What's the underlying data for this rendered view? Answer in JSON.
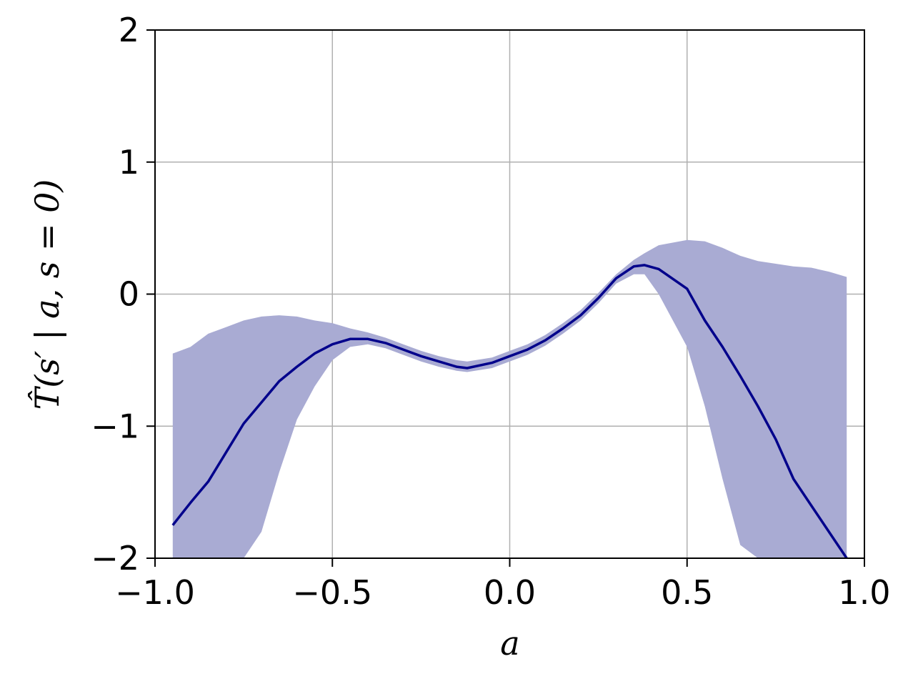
{
  "chart_data": {
    "type": "line",
    "title": "",
    "xlabel": "a",
    "ylabel": "T̂(s′ | a, s = 0)",
    "xlim": [
      -1.0,
      1.0
    ],
    "ylim": [
      -2,
      2
    ],
    "xticks": [
      -1.0,
      -0.5,
      0.0,
      0.5,
      1.0
    ],
    "xtick_labels": [
      "−1.0",
      "−0.5",
      "0.0",
      "0.5",
      "1.0"
    ],
    "yticks": [
      -2,
      -1,
      0,
      1,
      2
    ],
    "ytick_labels": [
      "−2",
      "−1",
      "0",
      "1",
      "2"
    ],
    "grid": true,
    "colors": {
      "line": "#00008b",
      "band": "#a9abd3",
      "grid": "#b0b0b0"
    },
    "series": [
      {
        "x": [
          -0.95,
          -0.9,
          -0.85,
          -0.8,
          -0.75,
          -0.7,
          -0.65,
          -0.6,
          -0.55,
          -0.5,
          -0.45,
          -0.4,
          -0.35,
          -0.3,
          -0.25,
          -0.2,
          -0.15,
          -0.12,
          -0.05,
          0.0,
          0.05,
          0.1,
          0.15,
          0.2,
          0.25,
          0.3,
          0.35,
          0.38,
          0.42,
          0.5,
          0.55,
          0.6,
          0.65,
          0.7,
          0.75,
          0.8,
          0.85,
          0.9,
          0.95
        ],
        "y": [
          -1.75,
          -1.58,
          -1.42,
          -1.2,
          -0.98,
          -0.82,
          -0.66,
          -0.55,
          -0.45,
          -0.38,
          -0.34,
          -0.34,
          -0.37,
          -0.42,
          -0.47,
          -0.51,
          -0.55,
          -0.56,
          -0.52,
          -0.47,
          -0.42,
          -0.35,
          -0.26,
          -0.16,
          -0.03,
          0.12,
          0.21,
          0.22,
          0.19,
          0.04,
          -0.2,
          -0.4,
          -0.62,
          -0.85,
          -1.1,
          -1.4,
          -1.6,
          -1.8,
          -2.0
        ]
      }
    ],
    "band": {
      "x": [
        -0.95,
        -0.9,
        -0.85,
        -0.8,
        -0.75,
        -0.7,
        -0.65,
        -0.6,
        -0.55,
        -0.5,
        -0.45,
        -0.4,
        -0.35,
        -0.3,
        -0.25,
        -0.2,
        -0.15,
        -0.12,
        -0.05,
        0.0,
        0.05,
        0.1,
        0.15,
        0.2,
        0.25,
        0.3,
        0.35,
        0.38,
        0.42,
        0.5,
        0.55,
        0.6,
        0.65,
        0.7,
        0.75,
        0.8,
        0.85,
        0.9,
        0.95
      ],
      "upper": [
        -0.45,
        -0.4,
        -0.3,
        -0.25,
        -0.2,
        -0.17,
        -0.16,
        -0.17,
        -0.2,
        -0.22,
        -0.26,
        -0.29,
        -0.33,
        -0.38,
        -0.43,
        -0.47,
        -0.5,
        -0.51,
        -0.48,
        -0.43,
        -0.38,
        -0.31,
        -0.22,
        -0.12,
        0.01,
        0.15,
        0.26,
        0.31,
        0.37,
        0.41,
        0.4,
        0.35,
        0.29,
        0.25,
        0.23,
        0.21,
        0.2,
        0.17,
        0.13
      ],
      "lower": [
        -2.0,
        -2.0,
        -2.0,
        -2.0,
        -2.0,
        -1.8,
        -1.35,
        -0.95,
        -0.7,
        -0.5,
        -0.4,
        -0.38,
        -0.41,
        -0.46,
        -0.51,
        -0.55,
        -0.58,
        -0.59,
        -0.56,
        -0.51,
        -0.46,
        -0.39,
        -0.3,
        -0.2,
        -0.07,
        0.08,
        0.15,
        0.15,
        0.0,
        -0.4,
        -0.85,
        -1.4,
        -1.9,
        -2.0,
        -2.0,
        -2.0,
        -2.0,
        -2.0,
        -2.0
      ]
    }
  }
}
